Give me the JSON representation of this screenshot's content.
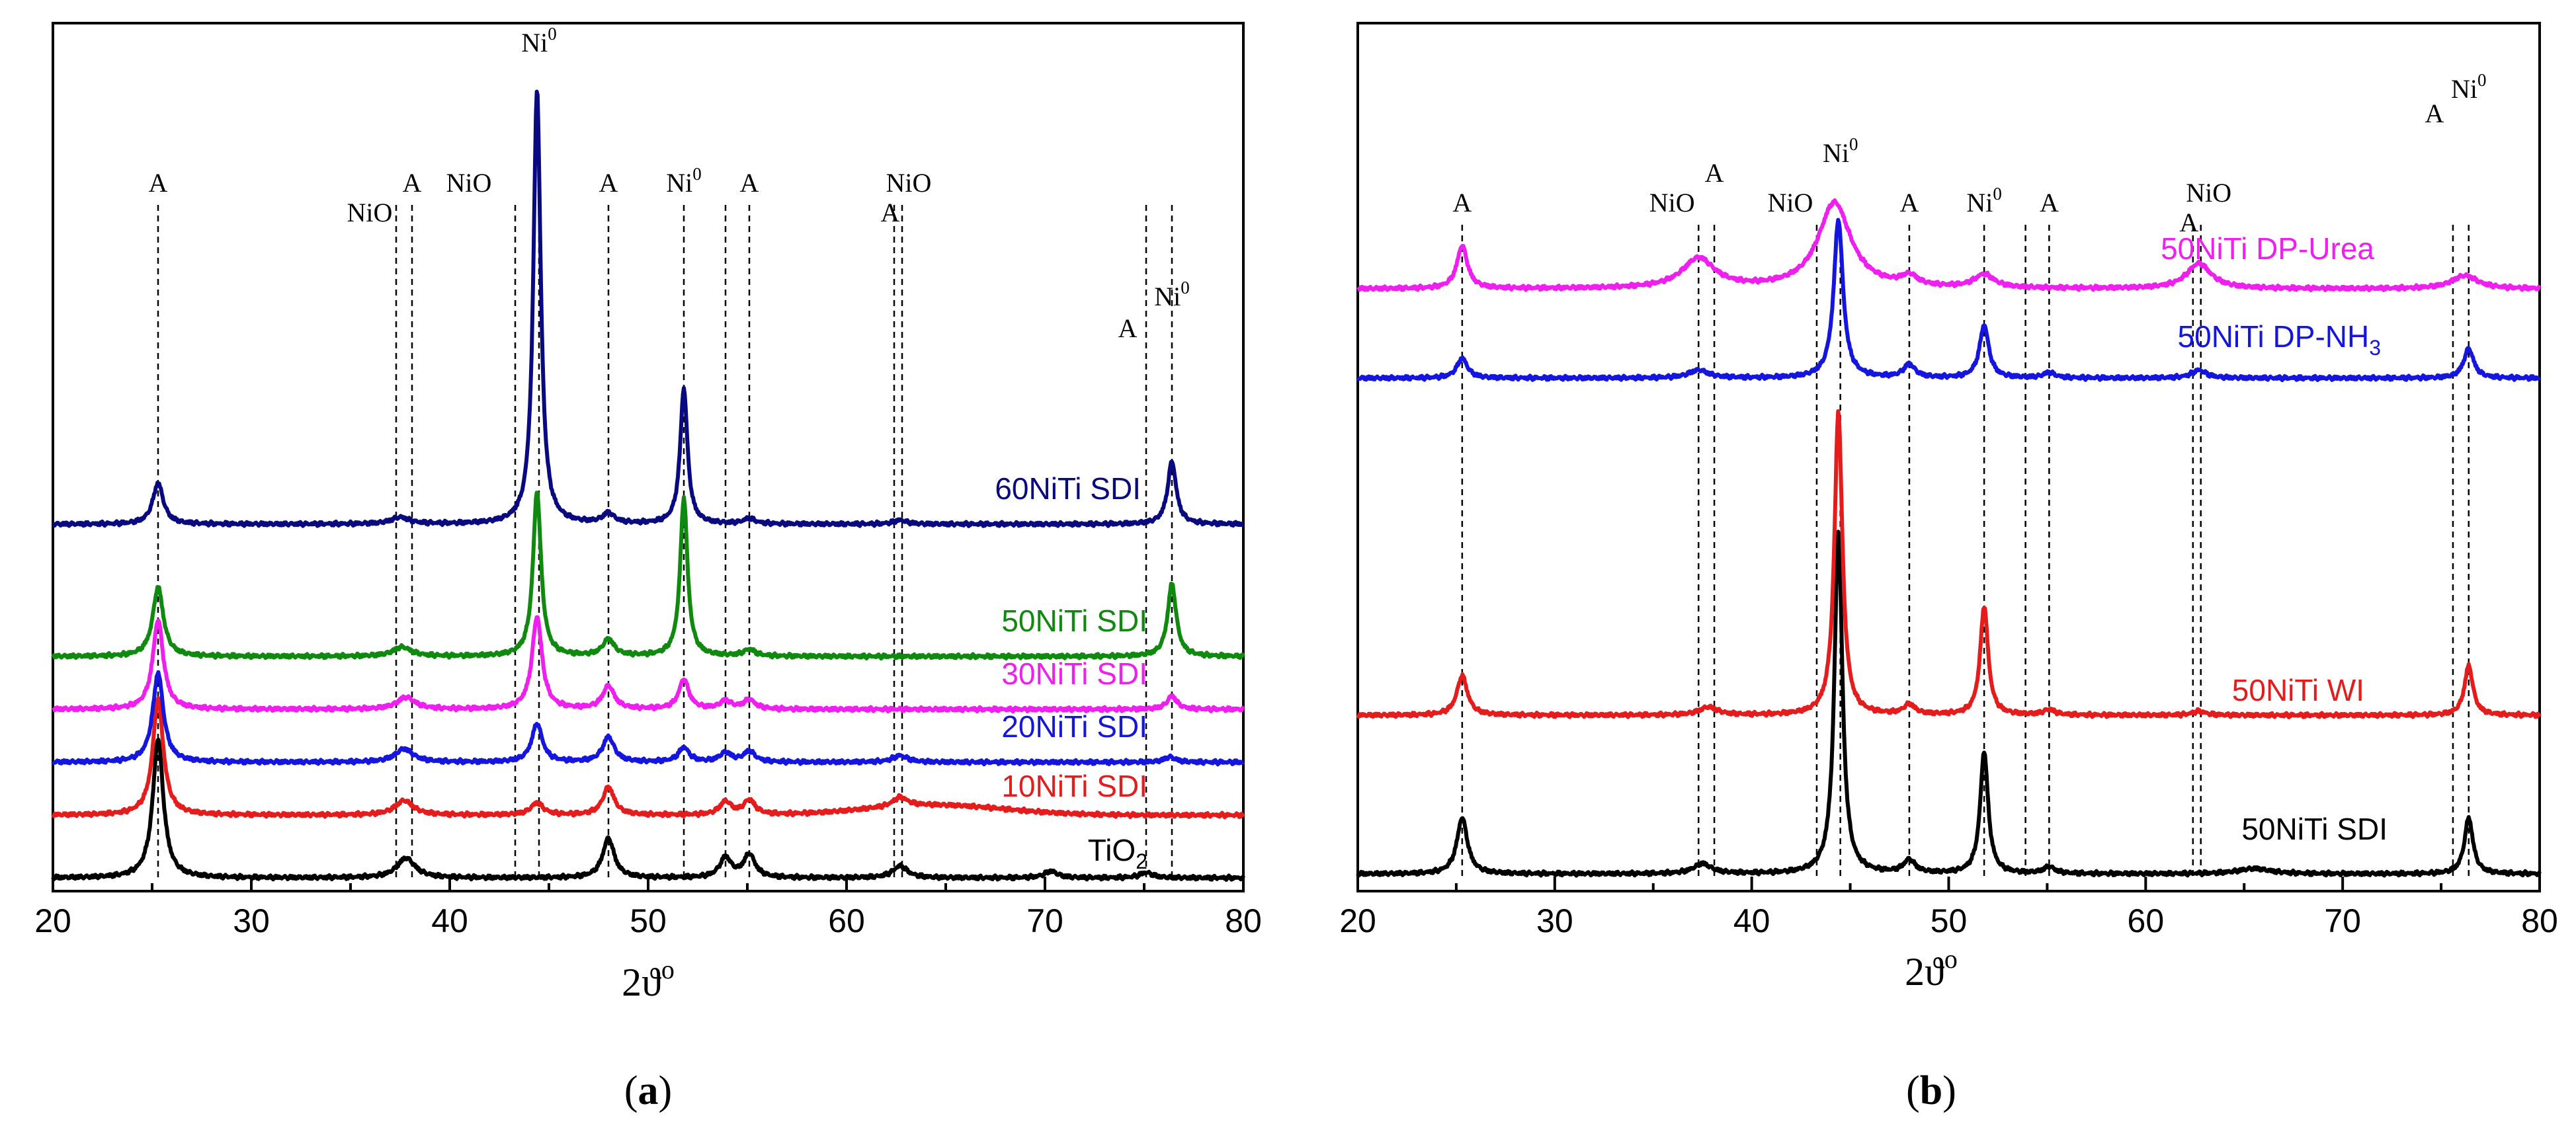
{
  "chart_data": [
    {
      "type": "line",
      "panel": "a",
      "caption": {
        "open": "(",
        "letter": "a",
        "close": ")"
      },
      "xlabel": {
        "main": "2ϑ",
        "sup": "o"
      },
      "xlim": [
        20,
        80
      ],
      "x_ticks": [
        20,
        30,
        40,
        50,
        60,
        70,
        80
      ],
      "yaxis": "intensity (a.u.), offset per series, no tick labels",
      "peak_markers": [
        {
          "x": 25.3,
          "parts": [
            {
              "text": "A"
            }
          ]
        },
        {
          "x": 37.3,
          "parts": [
            {
              "text": "NiO"
            }
          ]
        },
        {
          "x": 38.1,
          "parts": [
            {
              "text": "A"
            }
          ]
        },
        {
          "x": 43.3,
          "parts": [
            {
              "text": "NiO"
            }
          ]
        },
        {
          "x": 44.5,
          "parts": [
            {
              "text": "Ni"
            },
            {
              "text": "0",
              "sup": true
            }
          ]
        },
        {
          "x": 48.0,
          "parts": [
            {
              "text": "A"
            }
          ]
        },
        {
          "x": 51.8,
          "parts": [
            {
              "text": "Ni"
            },
            {
              "text": "0",
              "sup": true
            }
          ]
        },
        {
          "x": 53.9,
          "parts": []
        },
        {
          "x": 55.1,
          "parts": [
            {
              "text": "A"
            }
          ]
        },
        {
          "x": 62.4,
          "parts": [
            {
              "text": "A"
            }
          ]
        },
        {
          "x": 62.8,
          "parts": [
            {
              "text": "NiO"
            }
          ]
        },
        {
          "x": 75.1,
          "parts": [
            {
              "text": "A"
            }
          ]
        },
        {
          "x": 76.4,
          "parts": [
            {
              "text": "Ni"
            },
            {
              "text": "0",
              "sup": true
            }
          ]
        }
      ],
      "series": [
        {
          "name": "TiO2",
          "label_parts": [
            {
              "text": "TiO"
            },
            {
              "text": "2",
              "sub": true
            }
          ],
          "color": "#000000",
          "baseline": 0,
          "background": [],
          "peaks": [
            [
              25.3,
              210,
              0.32
            ],
            [
              37.8,
              30,
              0.55
            ],
            [
              48.0,
              60,
              0.35
            ],
            [
              53.9,
              30,
              0.35
            ],
            [
              55.1,
              35,
              0.35
            ],
            [
              62.7,
              18,
              0.45
            ],
            [
              70.3,
              10,
              0.4
            ],
            [
              75.1,
              8,
              0.4
            ]
          ]
        },
        {
          "name": "10NiTi SDI",
          "label_parts": [
            {
              "text": "10NiTi SDI"
            }
          ],
          "color": "#e41c1c",
          "baseline": 95,
          "background": [
            [
              64.5,
              15,
              3.5
            ]
          ],
          "peaks": [
            [
              25.3,
              175,
              0.32
            ],
            [
              37.7,
              22,
              0.55
            ],
            [
              44.4,
              18,
              0.38
            ],
            [
              48.0,
              42,
              0.35
            ],
            [
              53.9,
              20,
              0.35
            ],
            [
              55.1,
              22,
              0.35
            ],
            [
              62.7,
              14,
              0.45
            ]
          ]
        },
        {
          "name": "20NiTi SDI",
          "label_parts": [
            {
              "text": "20NiTi SDI"
            }
          ],
          "color": "#1515e0",
          "baseline": 175,
          "background": [],
          "peaks": [
            [
              25.3,
              135,
              0.32
            ],
            [
              37.7,
              20,
              0.55
            ],
            [
              44.4,
              58,
              0.32
            ],
            [
              48.0,
              38,
              0.35
            ],
            [
              51.8,
              22,
              0.32
            ],
            [
              53.9,
              14,
              0.35
            ],
            [
              55.1,
              16,
              0.35
            ],
            [
              62.7,
              10,
              0.45
            ],
            [
              76.3,
              8,
              0.35
            ]
          ]
        },
        {
          "name": "30NiTi SDI",
          "label_parts": [
            {
              "text": "30NiTi SDI"
            }
          ],
          "color": "#ef1fef",
          "baseline": 255,
          "background": [],
          "peaks": [
            [
              25.3,
              135,
              0.32
            ],
            [
              37.8,
              18,
              0.55
            ],
            [
              44.4,
              140,
              0.3
            ],
            [
              48.0,
              35,
              0.35
            ],
            [
              51.8,
              45,
              0.3
            ],
            [
              53.9,
              12,
              0.35
            ],
            [
              55.1,
              14,
              0.35
            ],
            [
              76.4,
              20,
              0.3
            ]
          ]
        },
        {
          "name": "50NiTi SDI",
          "label_parts": [
            {
              "text": "50NiTi SDI"
            }
          ],
          "color": "#0f8a0f",
          "baseline": 335,
          "background": [],
          "peaks": [
            [
              25.3,
              105,
              0.32
            ],
            [
              37.6,
              14,
              0.55
            ],
            [
              44.4,
              250,
              0.24
            ],
            [
              48.0,
              25,
              0.35
            ],
            [
              51.8,
              240,
              0.22
            ],
            [
              55.1,
              10,
              0.35
            ],
            [
              76.4,
              110,
              0.26
            ]
          ]
        },
        {
          "name": "60NiTi SDI",
          "label_parts": [
            {
              "text": "60NiTi SDI"
            }
          ],
          "color": "#0a0a80",
          "baseline": 535,
          "background": [],
          "peaks": [
            [
              25.3,
              62,
              0.32
            ],
            [
              37.5,
              10,
              0.55
            ],
            [
              44.4,
              660,
              0.22
            ],
            [
              48.0,
              15,
              0.35
            ],
            [
              51.8,
              205,
              0.22
            ],
            [
              55.1,
              8,
              0.35
            ],
            [
              62.7,
              6,
              0.4
            ],
            [
              76.4,
              95,
              0.26
            ]
          ]
        }
      ]
    },
    {
      "type": "line",
      "panel": "b",
      "caption": {
        "open": "(",
        "letter": "b",
        "close": ")"
      },
      "xlabel": {
        "main": "2ϑ",
        "sup": "o"
      },
      "xlim": [
        20,
        80
      ],
      "x_ticks": [
        20,
        30,
        40,
        50,
        60,
        70,
        80
      ],
      "yaxis": "intensity (a.u.), offset per series, no tick labels",
      "peak_markers": [
        {
          "x": 25.3,
          "parts": [
            {
              "text": "A"
            }
          ]
        },
        {
          "x": 37.3,
          "parts": [
            {
              "text": "NiO"
            }
          ]
        },
        {
          "x": 38.1,
          "parts": [
            {
              "text": "A"
            }
          ]
        },
        {
          "x": 43.3,
          "parts": [
            {
              "text": "NiO"
            }
          ]
        },
        {
          "x": 44.5,
          "parts": [
            {
              "text": "Ni"
            },
            {
              "text": "0",
              "sup": true
            }
          ]
        },
        {
          "x": 48.0,
          "parts": [
            {
              "text": "A"
            }
          ]
        },
        {
          "x": 51.8,
          "parts": [
            {
              "text": "Ni"
            },
            {
              "text": "0",
              "sup": true
            }
          ]
        },
        {
          "x": 53.9,
          "parts": []
        },
        {
          "x": 55.1,
          "parts": [
            {
              "text": "A"
            }
          ]
        },
        {
          "x": 62.4,
          "parts": [
            {
              "text": "A"
            }
          ]
        },
        {
          "x": 62.8,
          "parts": [
            {
              "text": "NiO"
            }
          ]
        },
        {
          "x": 75.6,
          "parts": [
            {
              "text": "A"
            }
          ]
        },
        {
          "x": 76.4,
          "parts": [
            {
              "text": "Ni"
            },
            {
              "text": "0",
              "sup": true
            }
          ]
        }
      ],
      "series": [
        {
          "name": "50NiTi SDI",
          "label_parts": [
            {
              "text": "50NiTi SDI"
            }
          ],
          "color": "#000000",
          "baseline": 0,
          "background": [],
          "peaks": [
            [
              25.3,
              85,
              0.32
            ],
            [
              37.5,
              15,
              0.55
            ],
            [
              44.4,
              520,
              0.24
            ],
            [
              48.0,
              20,
              0.35
            ],
            [
              51.8,
              185,
              0.24
            ],
            [
              55.1,
              10,
              0.35
            ],
            [
              65.5,
              8,
              1.0
            ],
            [
              76.4,
              85,
              0.26
            ]
          ]
        },
        {
          "name": "50NiTi WI",
          "label_parts": [
            {
              "text": "50NiTi WI"
            }
          ],
          "color": "#e41c1c",
          "baseline": 240,
          "background": [],
          "peaks": [
            [
              25.3,
              60,
              0.32
            ],
            [
              37.8,
              12,
              0.55
            ],
            [
              44.4,
              460,
              0.24
            ],
            [
              48.0,
              15,
              0.35
            ],
            [
              51.8,
              165,
              0.24
            ],
            [
              55.1,
              8,
              0.35
            ],
            [
              62.7,
              6,
              0.4
            ],
            [
              76.4,
              75,
              0.26
            ]
          ]
        },
        {
          "name": "50NiTi DP-NH3",
          "label_parts": [
            {
              "text": "50NiTi DP-NH"
            },
            {
              "text": "3",
              "sub": true
            }
          ],
          "color": "#1515e0",
          "baseline": 750,
          "background": [],
          "peaks": [
            [
              25.3,
              30,
              0.32
            ],
            [
              37.3,
              12,
              0.6
            ],
            [
              44.4,
              240,
              0.28
            ],
            [
              48.0,
              20,
              0.35
            ],
            [
              51.8,
              80,
              0.28
            ],
            [
              55.1,
              8,
              0.35
            ],
            [
              62.7,
              12,
              0.45
            ],
            [
              76.4,
              45,
              0.3
            ]
          ]
        },
        {
          "name": "50NiTi DP-Urea",
          "label_parts": [
            {
              "text": "50NiTi DP-Urea"
            }
          ],
          "color": "#ef1fef",
          "baseline": 885,
          "background": [],
          "peaks": [
            [
              25.3,
              65,
              0.32
            ],
            [
              37.3,
              45,
              1.0
            ],
            [
              44.2,
              130,
              1.0
            ],
            [
              48.0,
              15,
              0.5
            ],
            [
              51.8,
              20,
              0.6
            ],
            [
              62.7,
              38,
              0.75
            ],
            [
              76.2,
              20,
              0.8
            ]
          ]
        }
      ]
    }
  ]
}
